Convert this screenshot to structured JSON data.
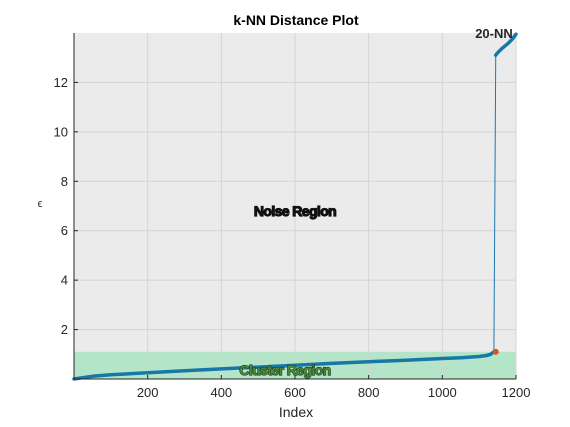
{
  "chart_data": {
    "type": "line",
    "title": "k-NN Distance Plot",
    "xlabel": "Index",
    "ylabel": "ϵ",
    "xlim": [
      0,
      1200
    ],
    "ylim": [
      0,
      14
    ],
    "xticks": [
      200,
      400,
      600,
      800,
      1000,
      1200
    ],
    "yticks": [
      2,
      4,
      6,
      8,
      10,
      12
    ],
    "grid": true,
    "series": [
      {
        "name": "20-NN",
        "color": "#1f77b4",
        "x": [
          0,
          20,
          50,
          100,
          200,
          300,
          400,
          500,
          600,
          700,
          800,
          900,
          1000,
          1050,
          1080,
          1100,
          1120,
          1130,
          1140,
          1145,
          1150,
          1160,
          1180,
          1190,
          1200
        ],
        "y": [
          0.0,
          0.05,
          0.11,
          0.17,
          0.25,
          0.33,
          0.41,
          0.48,
          0.56,
          0.63,
          0.7,
          0.76,
          0.83,
          0.86,
          0.89,
          0.91,
          0.95,
          0.99,
          1.1,
          13.1,
          13.2,
          13.35,
          13.6,
          13.75,
          13.95
        ]
      }
    ],
    "knee_point": {
      "x": 1145,
      "y": 1.1,
      "color": "#d95319"
    },
    "regions": [
      {
        "label": "Noise Region",
        "y_from": 1.1,
        "y_to": 14,
        "color": "#ebebeb"
      },
      {
        "label": "Cluster Region",
        "y_from": 0,
        "y_to": 1.1,
        "color": "#b5e5c8"
      }
    ],
    "annotation": "20-NN"
  }
}
